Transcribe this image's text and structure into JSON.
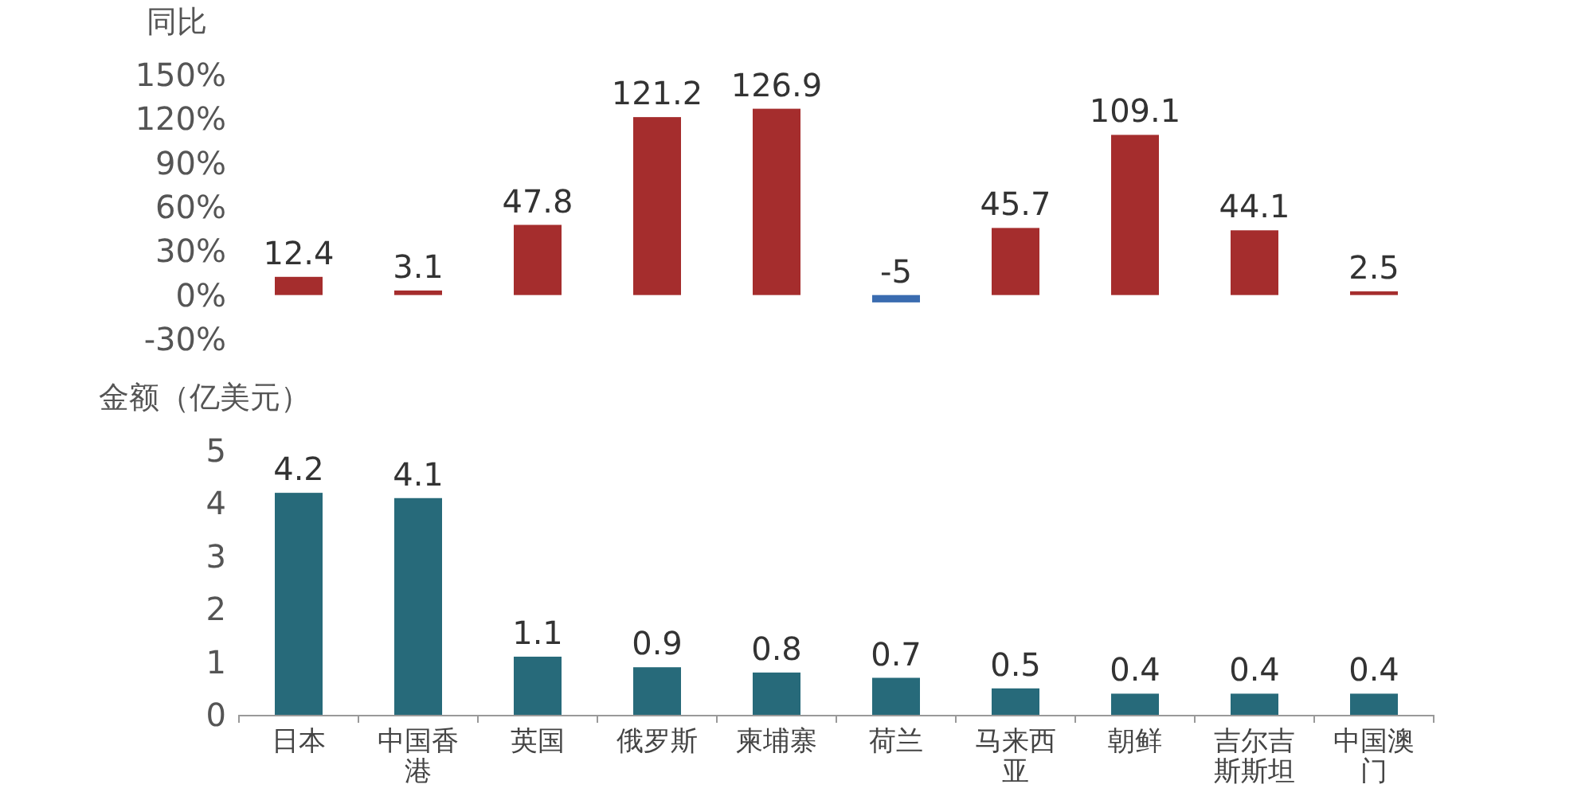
{
  "chart_data": [
    {
      "type": "bar",
      "ylabel": "同比",
      "categories": [
        "日本",
        "中国香港",
        "英国",
        "俄罗斯",
        "柬埔寨",
        "荷兰",
        "马来西亚",
        "朝鲜",
        "吉尔吉斯斯坦",
        "中国澳门"
      ],
      "values": [
        12.4,
        3.1,
        47.8,
        121.2,
        126.9,
        -5,
        45.7,
        109.1,
        44.1,
        2.5
      ],
      "colors": [
        "#a52d2d",
        "#a52d2d",
        "#a52d2d",
        "#a52d2d",
        "#a52d2d",
        "#3a6cb0",
        "#a52d2d",
        "#a52d2d",
        "#a52d2d",
        "#a52d2d"
      ],
      "ylim": [
        -30,
        150
      ],
      "yticks": [
        {
          "value": -30,
          "label": "-30%"
        },
        {
          "value": 0,
          "label": "0%"
        },
        {
          "value": 30,
          "label": "30%"
        },
        {
          "value": 60,
          "label": "60%"
        },
        {
          "value": 90,
          "label": "90%"
        },
        {
          "value": 120,
          "label": "120%"
        },
        {
          "value": 150,
          "label": "150%"
        }
      ],
      "tick_labels": "y",
      "data_labels": true
    },
    {
      "type": "bar",
      "ylabel": "金额（亿美元）",
      "categories": [
        "日本",
        "中国香港",
        "英国",
        "俄罗斯",
        "柬埔寨",
        "荷兰",
        "马来西亚",
        "朝鲜",
        "吉尔吉斯斯坦",
        "中国澳门"
      ],
      "values": [
        4.2,
        4.1,
        1.1,
        0.9,
        0.8,
        0.7,
        0.5,
        0.4,
        0.4,
        0.4
      ],
      "color": "#276a7a",
      "ylim": [
        0,
        5
      ],
      "yticks": [
        0,
        1,
        2,
        3,
        4,
        5
      ],
      "data_labels": true
    }
  ]
}
